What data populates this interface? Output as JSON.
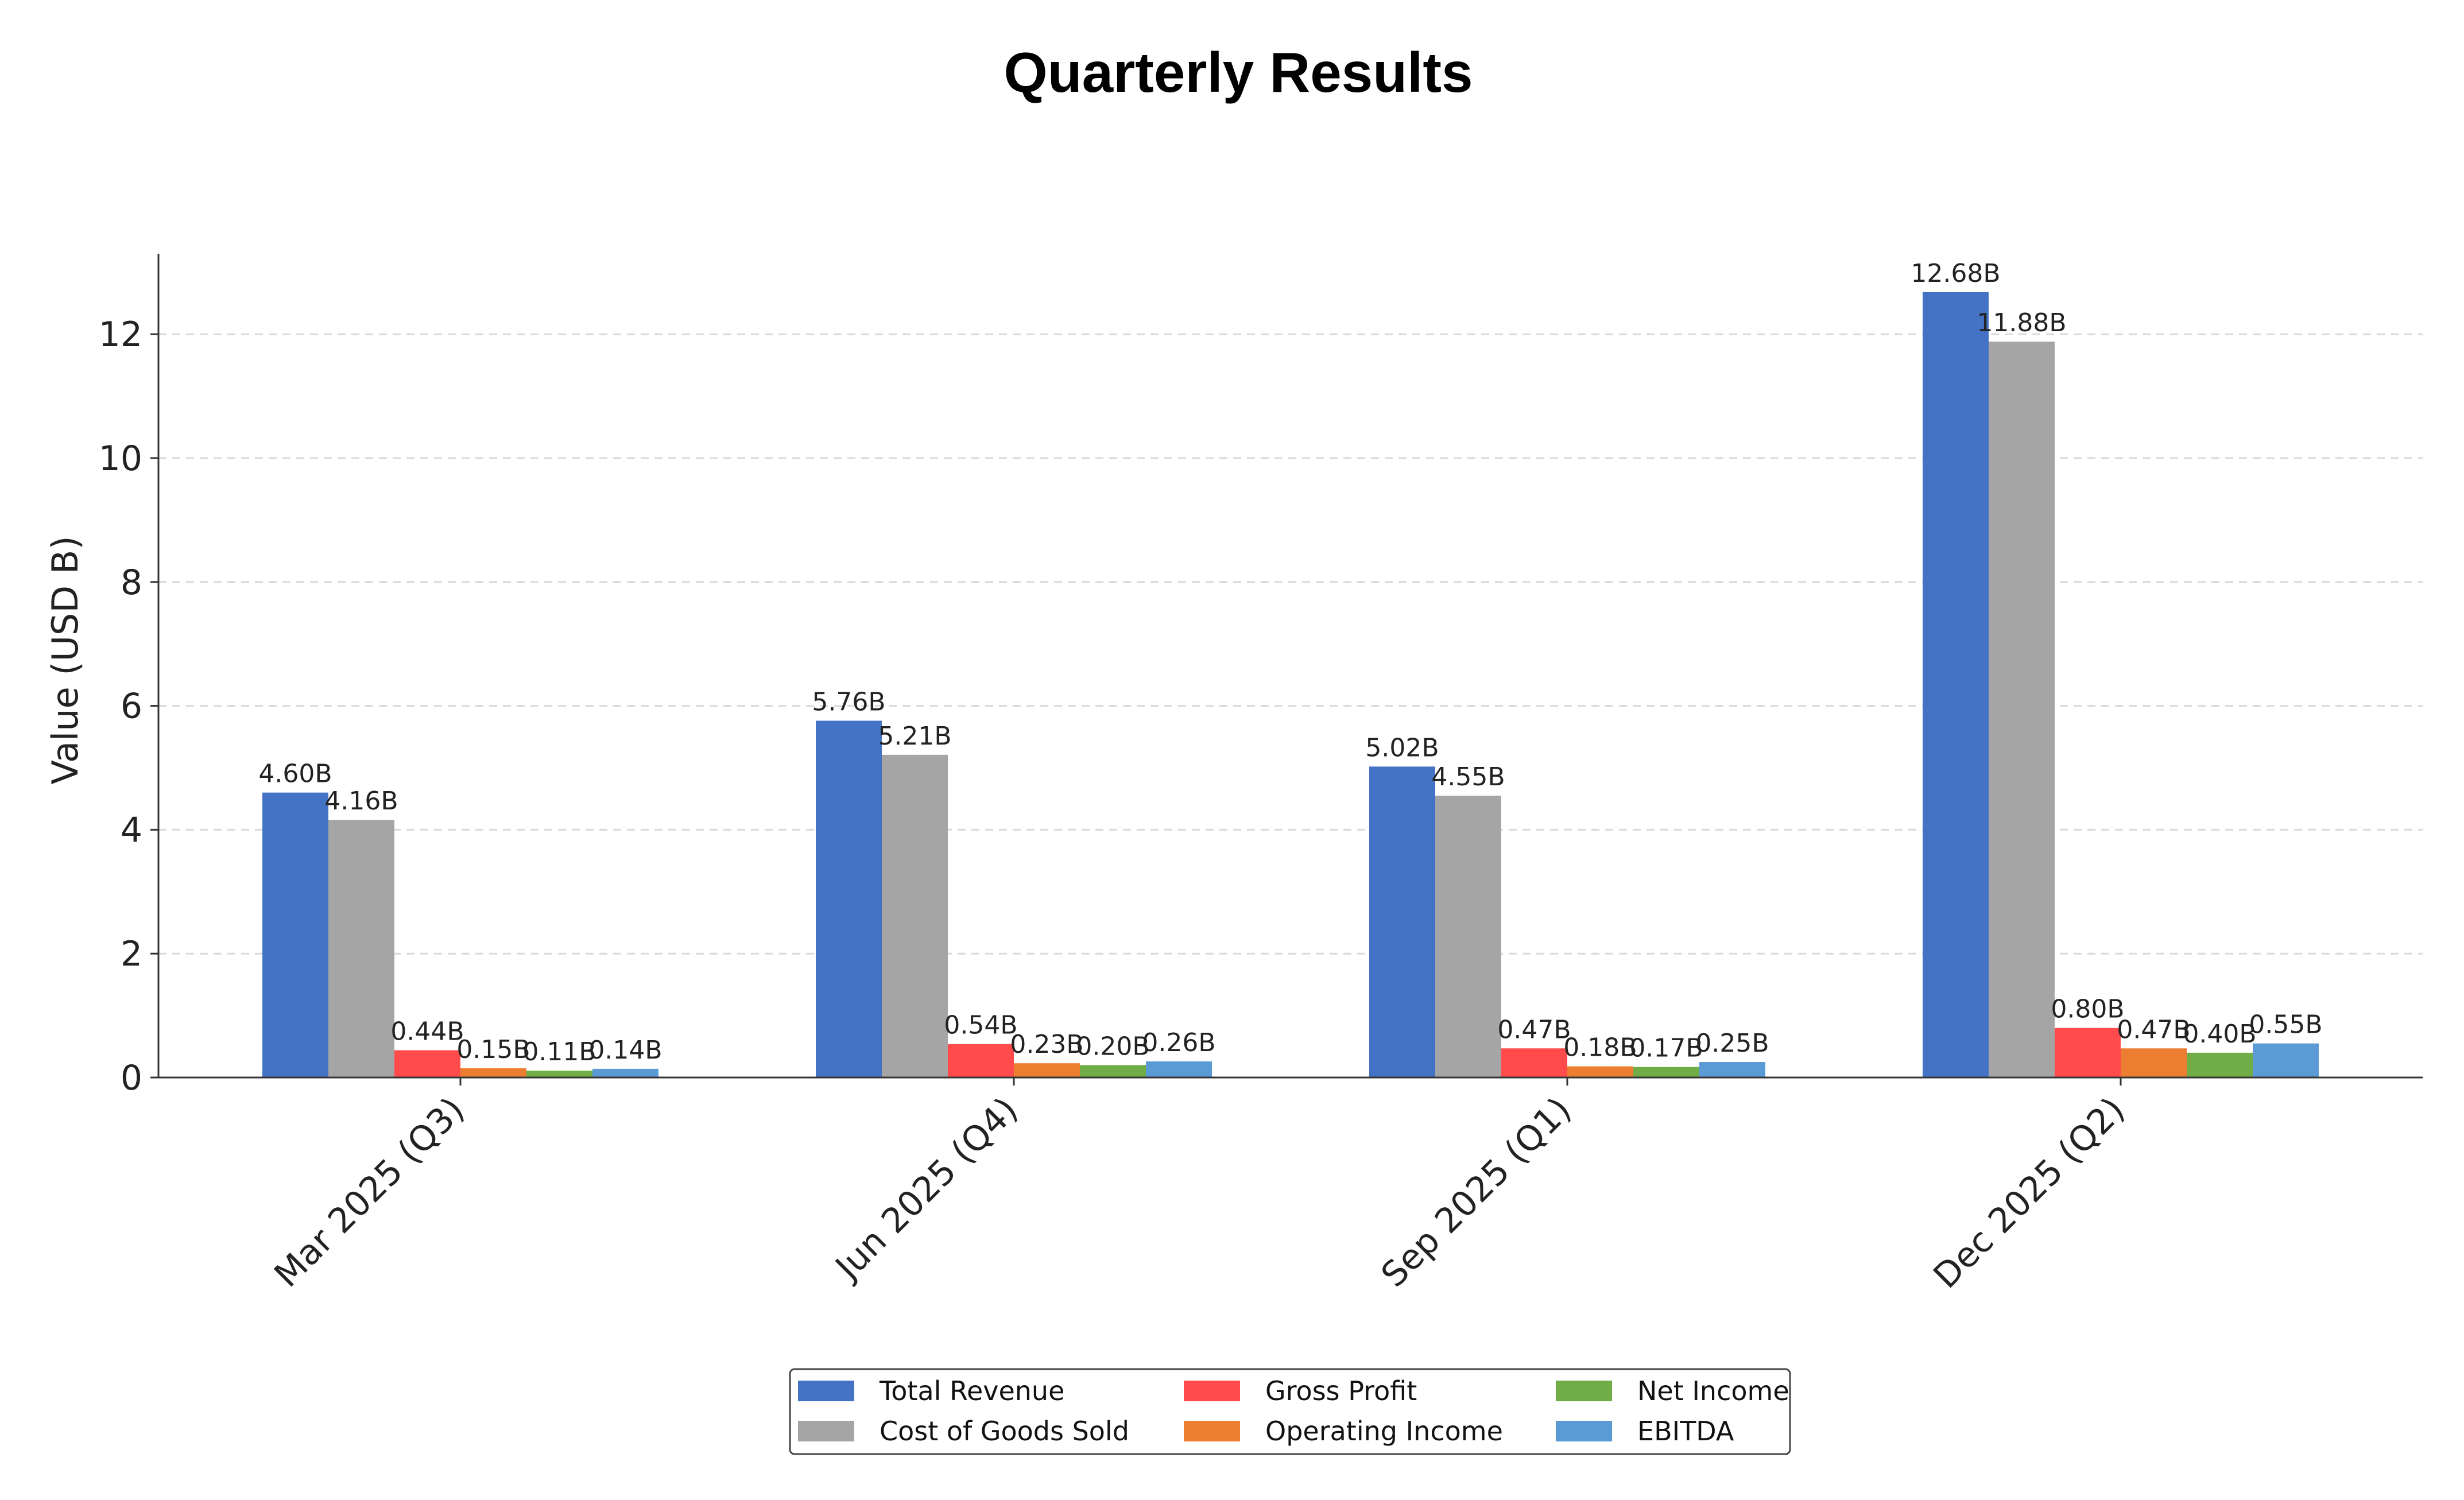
{
  "chart_data": {
    "type": "bar",
    "title": "Quarterly Results",
    "xlabel": "",
    "ylabel": "Value (USD B)",
    "ylim": [
      0,
      13.3
    ],
    "yticks": [
      0,
      2,
      4,
      6,
      8,
      10,
      12
    ],
    "grid": "y-dashed",
    "legend_position": "bottom-center",
    "categories": [
      "Mar 2025 (Q3)",
      "Jun 2025 (Q4)",
      "Sep 2025 (Q1)",
      "Dec 2025 (Q2)"
    ],
    "series": [
      {
        "name": "Total Revenue",
        "color": "#4472C4",
        "values": [
          4.6,
          5.76,
          5.02,
          12.68
        ],
        "labels": [
          "4.60B",
          "5.76B",
          "5.02B",
          "12.68B"
        ]
      },
      {
        "name": "Cost of Goods Sold",
        "color": "#A5A5A5",
        "values": [
          4.16,
          5.21,
          4.55,
          11.88
        ],
        "labels": [
          "4.16B",
          "5.21B",
          "4.55B",
          "11.88B"
        ]
      },
      {
        "name": "Gross Profit",
        "color": "#FF4B4B",
        "values": [
          0.44,
          0.54,
          0.47,
          0.8
        ],
        "labels": [
          "0.44B",
          "0.54B",
          "0.47B",
          "0.80B"
        ]
      },
      {
        "name": "Operating Income",
        "color": "#ED7D31",
        "values": [
          0.15,
          0.23,
          0.18,
          0.47
        ],
        "labels": [
          "0.15B",
          "0.23B",
          "0.18B",
          "0.47B"
        ]
      },
      {
        "name": "Net Income",
        "color": "#70AD47",
        "values": [
          0.11,
          0.2,
          0.17,
          0.4
        ],
        "labels": [
          "0.11B",
          "0.20B",
          "0.17B",
          "0.40B"
        ]
      },
      {
        "name": "EBITDA",
        "color": "#5B9BD5",
        "values": [
          0.14,
          0.26,
          0.25,
          0.55
        ],
        "labels": [
          "0.14B",
          "0.26B",
          "0.25B",
          "0.55B"
        ]
      }
    ]
  }
}
